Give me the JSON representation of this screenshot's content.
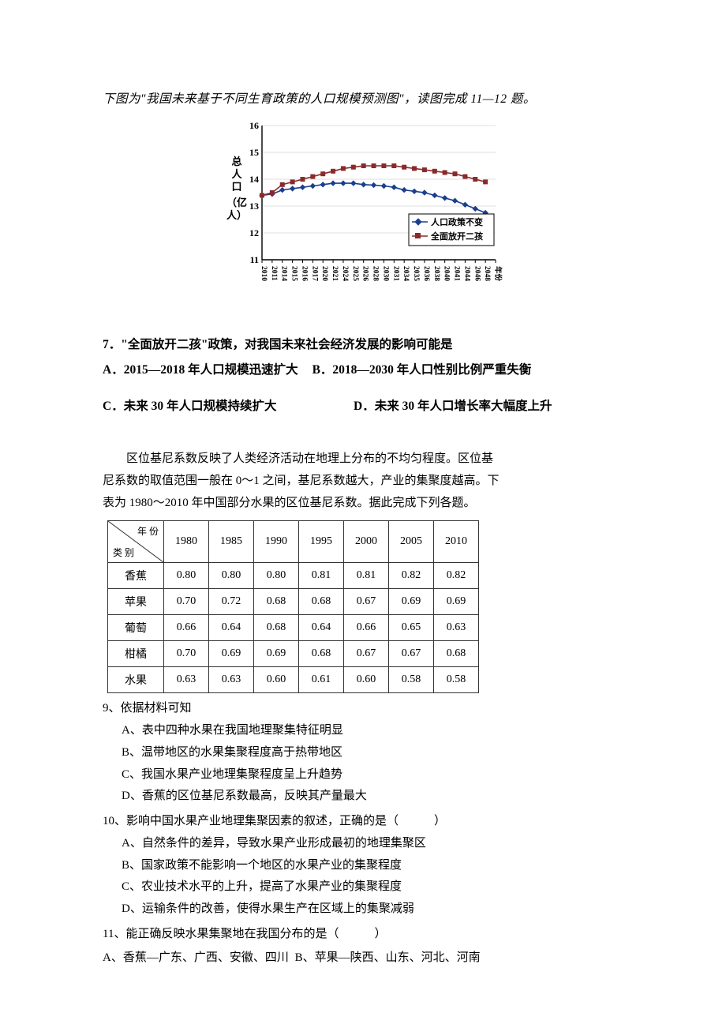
{
  "intro1": "下图为\"我国未来基于不同生育政策的人口规模预测图\"，读图完成 11—12 题。",
  "chart": {
    "type": "line",
    "y_label": "总人口（亿人）",
    "y_label_chars": [
      "总",
      "人",
      "口",
      "（亿",
      "人）"
    ],
    "ylim": [
      11,
      16
    ],
    "ytick_step": 1,
    "yticks": [
      "11",
      "12",
      "13",
      "14",
      "15",
      "16"
    ],
    "x_years": [
      "2010",
      "2011",
      "2014",
      "2015",
      "2016",
      "2017",
      "2020",
      "2021",
      "2024",
      "2025",
      "2026",
      "2028",
      "2030",
      "2031",
      "2034",
      "2035",
      "2036",
      "2038",
      "2040",
      "2041",
      "2044",
      "2046",
      "2048",
      "年份"
    ],
    "legend": {
      "items": [
        {
          "label": "人口政策不变",
          "marker": "diamond",
          "color": "#1b3f8f"
        },
        {
          "label": "全面放开二孩",
          "marker": "square",
          "color": "#8a2a2a"
        }
      ],
      "box_stroke": "#000000"
    },
    "axis_color": "#000000",
    "background_color": "#ffffff",
    "grid_color": "#c0c0c0",
    "tick_font_size": 9,
    "label_font_size": 12,
    "series": [
      {
        "name": "人口政策不变",
        "color": "#1b3f8f",
        "points": [
          [
            0,
            13.4
          ],
          [
            1,
            13.45
          ],
          [
            2,
            13.6
          ],
          [
            3,
            13.65
          ],
          [
            4,
            13.7
          ],
          [
            5,
            13.75
          ],
          [
            6,
            13.8
          ],
          [
            7,
            13.85
          ],
          [
            8,
            13.85
          ],
          [
            9,
            13.85
          ],
          [
            10,
            13.8
          ],
          [
            11,
            13.78
          ],
          [
            12,
            13.75
          ],
          [
            13,
            13.7
          ],
          [
            14,
            13.6
          ],
          [
            15,
            13.55
          ],
          [
            16,
            13.5
          ],
          [
            17,
            13.4
          ],
          [
            18,
            13.3
          ],
          [
            19,
            13.2
          ],
          [
            20,
            13.05
          ],
          [
            21,
            12.9
          ],
          [
            22,
            12.75
          ]
        ]
      },
      {
        "name": "全面放开二孩",
        "color": "#8a2a2a",
        "points": [
          [
            0,
            13.4
          ],
          [
            1,
            13.5
          ],
          [
            2,
            13.8
          ],
          [
            3,
            13.9
          ],
          [
            4,
            14.0
          ],
          [
            5,
            14.1
          ],
          [
            6,
            14.2
          ],
          [
            7,
            14.3
          ],
          [
            8,
            14.4
          ],
          [
            9,
            14.45
          ],
          [
            10,
            14.5
          ],
          [
            11,
            14.5
          ],
          [
            12,
            14.5
          ],
          [
            13,
            14.5
          ],
          [
            14,
            14.45
          ],
          [
            15,
            14.4
          ],
          [
            16,
            14.35
          ],
          [
            17,
            14.3
          ],
          [
            18,
            14.25
          ],
          [
            19,
            14.2
          ],
          [
            20,
            14.1
          ],
          [
            21,
            14.0
          ],
          [
            22,
            13.9
          ]
        ]
      }
    ]
  },
  "q7": {
    "stem": "7．\"全面放开二孩\"政策，对我国未来社会经济发展的影响可能是",
    "A": "A．2015—2018 年人口规模迅速扩大",
    "B": "B．2018—2030 年人口性别比例严重失衡",
    "C": "C．未来 30 年人口规模持续扩大",
    "D": "D．未来 30 年人口增长率大幅度上升"
  },
  "intro2_line1": "区位基尼系数反映了人类经济活动在地理上分布的不均匀程度。区位基",
  "intro2_line2": "尼系数的取值范围一般在 0～1 之间，基尼系数越大，产业的集聚度越高。下",
  "intro2_line3": "表为 1980～2010 年中国部分水果的区位基尼系数。据此完成下列各题。",
  "table": {
    "diag_top": "年 份",
    "diag_bot": "类 别",
    "columns": [
      "1980",
      "1985",
      "1990",
      "1995",
      "2000",
      "2005",
      "2010"
    ],
    "rows": [
      {
        "head": "香蕉",
        "cells": [
          "0.80",
          "0.80",
          "0.80",
          "0.81",
          "0.81",
          "0.82",
          "0.82"
        ]
      },
      {
        "head": "苹果",
        "cells": [
          "0.70",
          "0.72",
          "0.68",
          "0.68",
          "0.67",
          "0.69",
          "0.69"
        ]
      },
      {
        "head": "葡萄",
        "cells": [
          "0.66",
          "0.64",
          "0.68",
          "0.64",
          "0.66",
          "0.65",
          "0.63"
        ]
      },
      {
        "head": "柑橘",
        "cells": [
          "0.70",
          "0.69",
          "0.69",
          "0.68",
          "0.67",
          "0.67",
          "0.68"
        ]
      },
      {
        "head": "水果",
        "cells": [
          "0.63",
          "0.63",
          "0.60",
          "0.61",
          "0.60",
          "0.58",
          "0.58"
        ]
      }
    ],
    "border_color": "#333333",
    "header_fontfamily": "KaiTi"
  },
  "q9": {
    "stem": "9、依据材料可知",
    "A": "A、表中四种水果在我国地理聚集特征明显",
    "B": "B、温带地区的水果集聚程度高于热带地区",
    "C": "C、我国水果产业地理集聚程度呈上升趋势",
    "D": "D、香蕉的区位基尼系数最高，反映其产量最大"
  },
  "q10": {
    "stem": "10、影响中国水果产业地理集聚因素的叙述，正确的是（　　　）",
    "A": "A、自然条件的差异，导致水果产业形成最初的地理集聚区",
    "B": "B、国家政策不能影响一个地区的水果产业的集聚程度",
    "C": "C、农业技术水平的上升，提高了水果产业的集聚程度",
    "D": "D、运输条件的改善，使得水果生产在区域上的集聚减弱"
  },
  "q11": {
    "stem": "11、能正确反映水果集聚地在我国分布的是（　　　）",
    "A": "A、香蕉—广东、广西、安徽、四川",
    "B": "B、苹果—陕西、山东、河北、河南"
  }
}
